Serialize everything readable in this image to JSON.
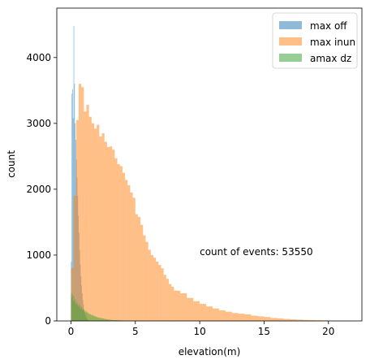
{
  "chart_data": {
    "type": "bar",
    "subtype": "overlaid-histogram",
    "xlabel": "elevation(m)",
    "ylabel": "count",
    "xlim": [
      -1.1,
      22.6
    ],
    "ylim": [
      0,
      4750
    ],
    "x_ticks": [
      0,
      5,
      10,
      15,
      20
    ],
    "y_ticks": [
      0,
      1000,
      2000,
      3000,
      4000
    ],
    "grid": false,
    "legend_position": "top-right",
    "annotation": "count of events: 53550",
    "annotation_at": [
      10,
      1000
    ],
    "series": [
      {
        "name": "max off",
        "color": "#1f77b4",
        "alpha": 0.5,
        "bin_edges": [
          0.0,
          0.05,
          0.1,
          0.15,
          0.2,
          0.25,
          0.3,
          0.35,
          0.4,
          0.45,
          0.5,
          0.55,
          0.6,
          0.65,
          0.7,
          0.75,
          0.8,
          0.85,
          0.9,
          0.95,
          1.0,
          1.05,
          1.1,
          1.15,
          1.2,
          1.25,
          1.3,
          1.35,
          1.4,
          1.45,
          1.5
        ],
        "counts": [
          900,
          3450,
          3520,
          3080,
          4480,
          3600,
          3000,
          2750,
          2450,
          2180,
          1900,
          1600,
          1340,
          1080,
          860,
          680,
          540,
          420,
          320,
          250,
          180,
          130,
          90,
          60,
          40,
          25,
          15,
          10,
          5,
          2
        ]
      },
      {
        "name": "max inun",
        "color": "#ff7f0e",
        "alpha": 0.5,
        "bin_edges": [
          0.0,
          0.2,
          0.4,
          0.6,
          0.8,
          1.0,
          1.2,
          1.4,
          1.6,
          1.8,
          2.0,
          2.2,
          2.4,
          2.6,
          2.8,
          3.0,
          3.2,
          3.4,
          3.6,
          3.8,
          4.0,
          4.2,
          4.4,
          4.6,
          4.8,
          5.0,
          5.2,
          5.4,
          5.6,
          5.8,
          6.0,
          6.2,
          6.4,
          6.6,
          6.8,
          7.0,
          7.2,
          7.4,
          7.6,
          7.8,
          8.0,
          8.5,
          9.0,
          9.5,
          10.0,
          10.5,
          11.0,
          11.5,
          12.0,
          12.5,
          13.0,
          13.5,
          14.0,
          14.5,
          15.0,
          15.5,
          16.0,
          16.5,
          17.0,
          17.5,
          18.0,
          18.5,
          19.0,
          19.5,
          20.0,
          20.5,
          21.0,
          21.5
        ],
        "counts": [
          800,
          1900,
          3050,
          3600,
          3550,
          3180,
          3280,
          3100,
          3000,
          2920,
          2980,
          2800,
          2850,
          2720,
          2640,
          2650,
          2600,
          2470,
          2380,
          2350,
          2250,
          2140,
          2060,
          1950,
          1870,
          1620,
          1580,
          1460,
          1300,
          1200,
          1080,
          1000,
          960,
          900,
          850,
          800,
          700,
          640,
          560,
          520,
          460,
          420,
          350,
          300,
          260,
          220,
          190,
          160,
          140,
          120,
          110,
          100,
          80,
          70,
          60,
          45,
          40,
          30,
          25,
          20,
          15,
          12,
          10,
          8,
          5,
          4,
          2
        ]
      },
      {
        "name": "amax dz",
        "color": "#2ca02c",
        "alpha": 0.5,
        "bin_edges": [
          0.0,
          0.05,
          0.1,
          0.15,
          0.2,
          0.25,
          0.3,
          0.35,
          0.4,
          0.45,
          0.5,
          0.55,
          0.6,
          0.65,
          0.7,
          0.75,
          0.8,
          0.85,
          0.9,
          0.95,
          1.0,
          1.05,
          1.1,
          1.15,
          1.2,
          1.25,
          1.3,
          1.35,
          1.4,
          1.45,
          1.5,
          1.55,
          1.6,
          1.65,
          1.7,
          1.75,
          1.8,
          1.85,
          1.9,
          1.95,
          2.0,
          2.05,
          2.1,
          2.15,
          2.2,
          2.25,
          2.3,
          2.35,
          2.4,
          2.45,
          2.5,
          2.6,
          2.7,
          2.8,
          2.9,
          3.0,
          3.2,
          3.4,
          3.6,
          3.8,
          4.0,
          4.5,
          5.0,
          5.5,
          6.0,
          6.5,
          7.0,
          8.0,
          9.0,
          10.0
        ],
        "counts": [
          420,
          360,
          400,
          310,
          380,
          290,
          330,
          260,
          300,
          240,
          270,
          220,
          250,
          200,
          230,
          180,
          210,
          170,
          190,
          150,
          170,
          140,
          160,
          130,
          145,
          120,
          130,
          105,
          115,
          95,
          105,
          90,
          95,
          80,
          88,
          72,
          80,
          65,
          72,
          58,
          62,
          52,
          56,
          48,
          50,
          44,
          46,
          40,
          42,
          38,
          34,
          30,
          27,
          24,
          20,
          17,
          14,
          12,
          10,
          8,
          6,
          5,
          4,
          3,
          2,
          2,
          1,
          1,
          1
        ]
      }
    ]
  }
}
